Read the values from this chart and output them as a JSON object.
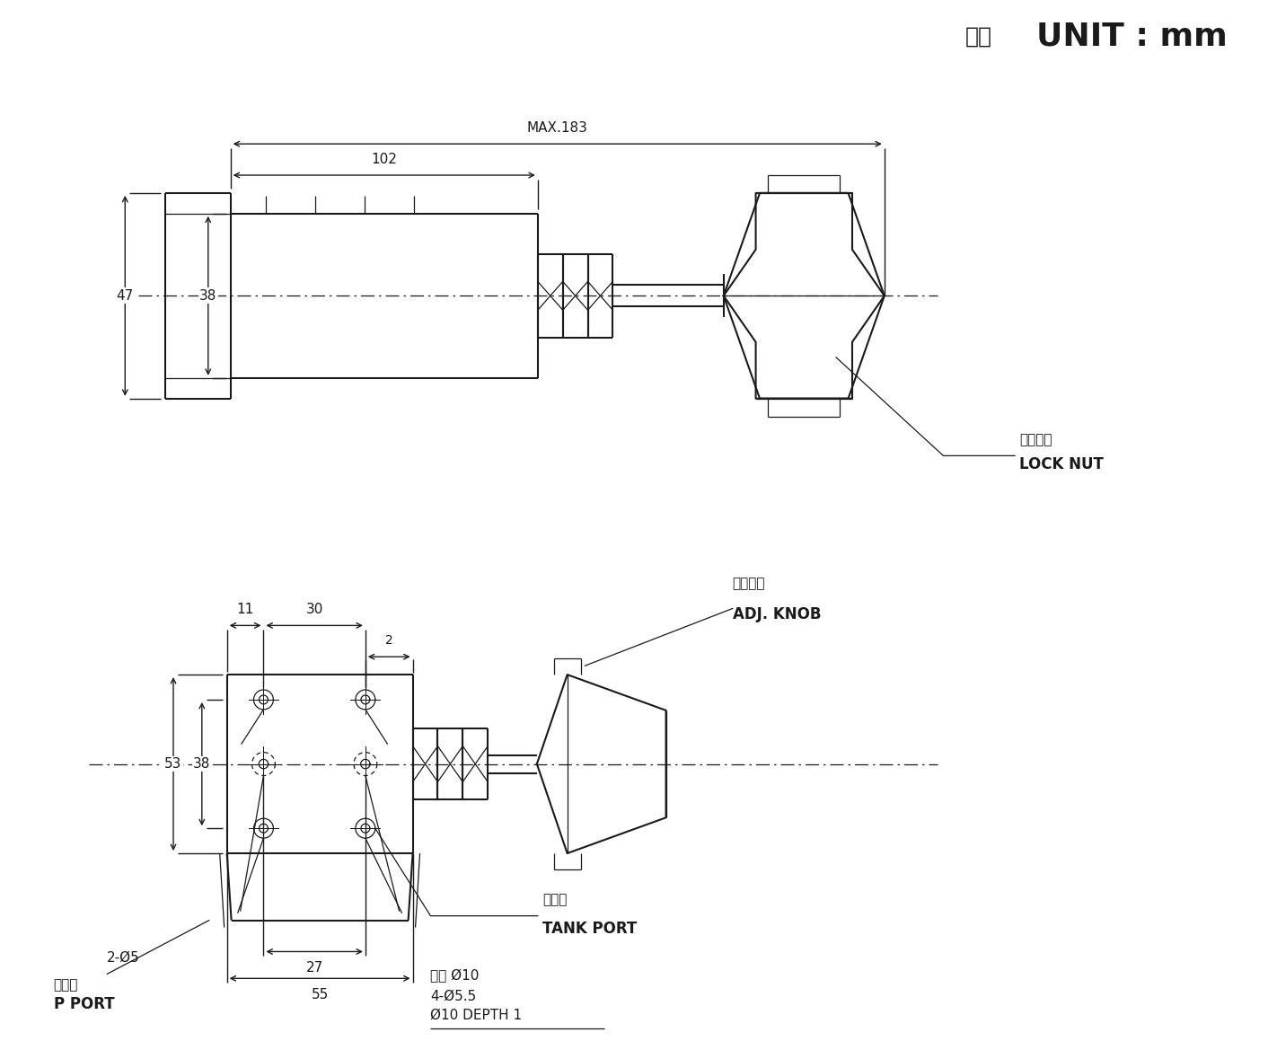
{
  "bg": "#ffffff",
  "lc": "#1a1a1a",
  "unit_cn": "單位",
  "unit_en": "UNIT : mm",
  "locknut_cn": "固定螺絲",
  "locknut_en": "LOCK NUT",
  "adjknob_cn": "調節旋鈕",
  "adjknob_en": "ADJ. KNOB",
  "tankport_cn": "回油孔",
  "tankport_en": "TANK PORT",
  "pport_label": "2-Ø5",
  "pport_cn": "壓力孔",
  "pport_en": "P PORT",
  "center_phi10": "中心 Ø10",
  "four_phi55": "4-Ø5.5",
  "depth": "Ø10 DEPTH 1",
  "d_max183": "MAX.183",
  "d_102": "102",
  "d_47": "47",
  "d_38t": "38",
  "d_53": "53",
  "d_38b": "38",
  "d_11": "11",
  "d_30": "30",
  "d_2": "2",
  "d_27": "27",
  "d_55": "55"
}
